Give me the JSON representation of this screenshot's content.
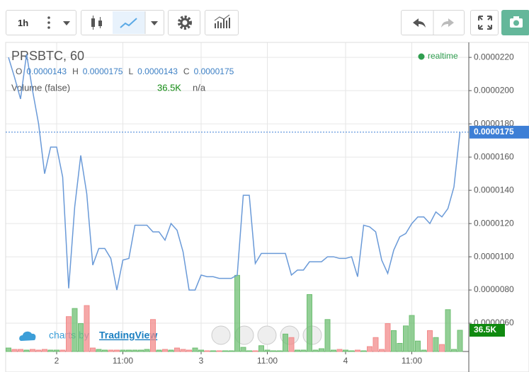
{
  "toolbar": {
    "interval": "1h"
  },
  "status": "realtime",
  "watermark": {
    "prefix": "charts by",
    "brand": "TradingView"
  },
  "chart_data": {
    "type": "line",
    "title": "PRSBTC, 60",
    "ohlc": {
      "labels": [
        "O",
        "H",
        "L",
        "C"
      ],
      "values": [
        1.43e-05,
        1.75e-05,
        1.43e-05,
        1.75e-05
      ],
      "value_labels": [
        "0.0000143",
        "0.0000175",
        "0.0000143",
        "0.0000175"
      ]
    },
    "categories": [
      null,
      null,
      null,
      null,
      null,
      null,
      null,
      null,
      "2",
      null,
      null,
      null,
      null,
      null,
      null,
      null,
      null,
      null,
      null,
      "11:00",
      null,
      null,
      null,
      null,
      null,
      null,
      null,
      null,
      null,
      null,
      null,
      null,
      "3",
      null,
      null,
      null,
      null,
      null,
      null,
      null,
      null,
      null,
      null,
      "11:00",
      null,
      null,
      null,
      null,
      null,
      null,
      null,
      null,
      null,
      null,
      null,
      null,
      "4",
      null,
      null,
      null,
      null,
      null,
      null,
      null,
      null,
      null,
      null,
      "11:00",
      null,
      null,
      null,
      null,
      null,
      null,
      null,
      null
    ],
    "series": [
      {
        "color": "#6a9ad8",
        "values": [
          2.2e-05,
          2.08e-05,
          1.95e-05,
          2.22e-05,
          2e-05,
          1.8e-05,
          1.5e-05,
          1.66e-05,
          1.66e-05,
          1.48e-05,
          8.1e-06,
          1.3e-05,
          1.61e-05,
          1.38e-05,
          9.5e-06,
          1.05e-05,
          1.05e-05,
          9.9e-06,
          8e-06,
          9.8e-06,
          9.9e-06,
          1.19e-05,
          1.19e-05,
          1.19e-05,
          1.15e-05,
          1.15e-05,
          1.1e-05,
          1.2e-05,
          1.16e-05,
          1.03e-05,
          8e-06,
          8e-06,
          8.9e-06,
          8.8e-06,
          8.8e-06,
          8.7e-06,
          8.7e-06,
          8.7e-06,
          8.9e-06,
          1.37e-05,
          1.37e-05,
          9.6e-06,
          1.02e-05,
          1.02e-05,
          1.02e-05,
          1.02e-05,
          1.02e-05,
          8.9e-06,
          9.2e-06,
          9.2e-06,
          9.7e-06,
          9.7e-06,
          9.7e-06,
          1e-05,
          1e-05,
          9.9e-06,
          9.9e-06,
          1e-05,
          8.8e-06,
          1.19e-05,
          1.18e-05,
          1.15e-05,
          9.8e-06,
          9e-06,
          1.04e-05,
          1.12e-05,
          1.14e-05,
          1.2e-05,
          1.24e-05,
          1.24e-05,
          1.2e-05,
          1.27e-05,
          1.24e-05,
          1.29e-05,
          1.42e-05,
          1.75e-05
        ]
      },
      {
        "name": "Volume (false)",
        "extra_label": "n/a",
        "axis": "y2",
        "values": [
          6000,
          3600,
          3600,
          2400,
          3600,
          2400,
          3600,
          2400,
          2400,
          2400,
          60000,
          74000,
          48000,
          79000,
          6000,
          3600,
          2400,
          2400,
          2400,
          2400,
          2400,
          2400,
          2400,
          3600,
          55000,
          2400,
          3600,
          2400,
          6000,
          3600,
          2400,
          6000,
          2400,
          1200,
          1200,
          1200,
          1200,
          1200,
          131000,
          7200,
          1200,
          1200,
          10000,
          2400,
          1200,
          1200,
          30000,
          24000,
          2400,
          2400,
          98000,
          2400,
          4800,
          55000,
          2400,
          3600,
          2400,
          1200,
          2400,
          1200,
          8400,
          24000,
          3600,
          48000,
          36000,
          14000,
          44000,
          62000,
          18000,
          2400,
          36000,
          24000,
          12000,
          72000,
          3600,
          36500
        ],
        "value_labels": [
          null,
          null,
          null,
          null,
          null,
          null,
          null,
          null,
          null,
          null,
          null,
          null,
          null,
          null,
          null,
          null,
          null,
          null,
          null,
          null,
          null,
          null,
          null,
          null,
          null,
          null,
          null,
          null,
          null,
          null,
          null,
          null,
          null,
          null,
          null,
          null,
          null,
          null,
          null,
          null,
          null,
          null,
          null,
          null,
          null,
          null,
          null,
          null,
          null,
          null,
          null,
          null,
          null,
          null,
          null,
          null,
          null,
          null,
          null,
          null,
          null,
          null,
          null,
          null,
          null,
          null,
          null,
          null,
          null,
          null,
          null,
          null,
          null,
          null,
          null,
          "36.5K"
        ]
      }
    ],
    "up_color": "#6fbf73",
    "down_color": "#f28b8b",
    "tag_color": "#3d7fd6",
    "volume_tag_color": "#108a10",
    "ylim": [
      4.3e-06,
      2.29e-05
    ],
    "yticks": [
      {
        "value": 6e-06,
        "label": "0.0000060"
      },
      {
        "value": 8e-06,
        "label": "0.0000080"
      },
      {
        "value": 1e-05,
        "label": "0.0000100"
      },
      {
        "value": 1.2e-05,
        "label": "0.0000120"
      },
      {
        "value": 1.4e-05,
        "label": "0.0000140"
      },
      {
        "value": 1.6e-05,
        "label": "0.0000160"
      },
      {
        "value": 1.8e-05,
        "label": "0.0000180"
      },
      {
        "value": 2e-05,
        "label": "0.0000200"
      },
      {
        "value": 2.2e-05,
        "label": "0.0000220"
      }
    ],
    "y2lim": [
      0,
      531700
    ],
    "grid": true
  }
}
